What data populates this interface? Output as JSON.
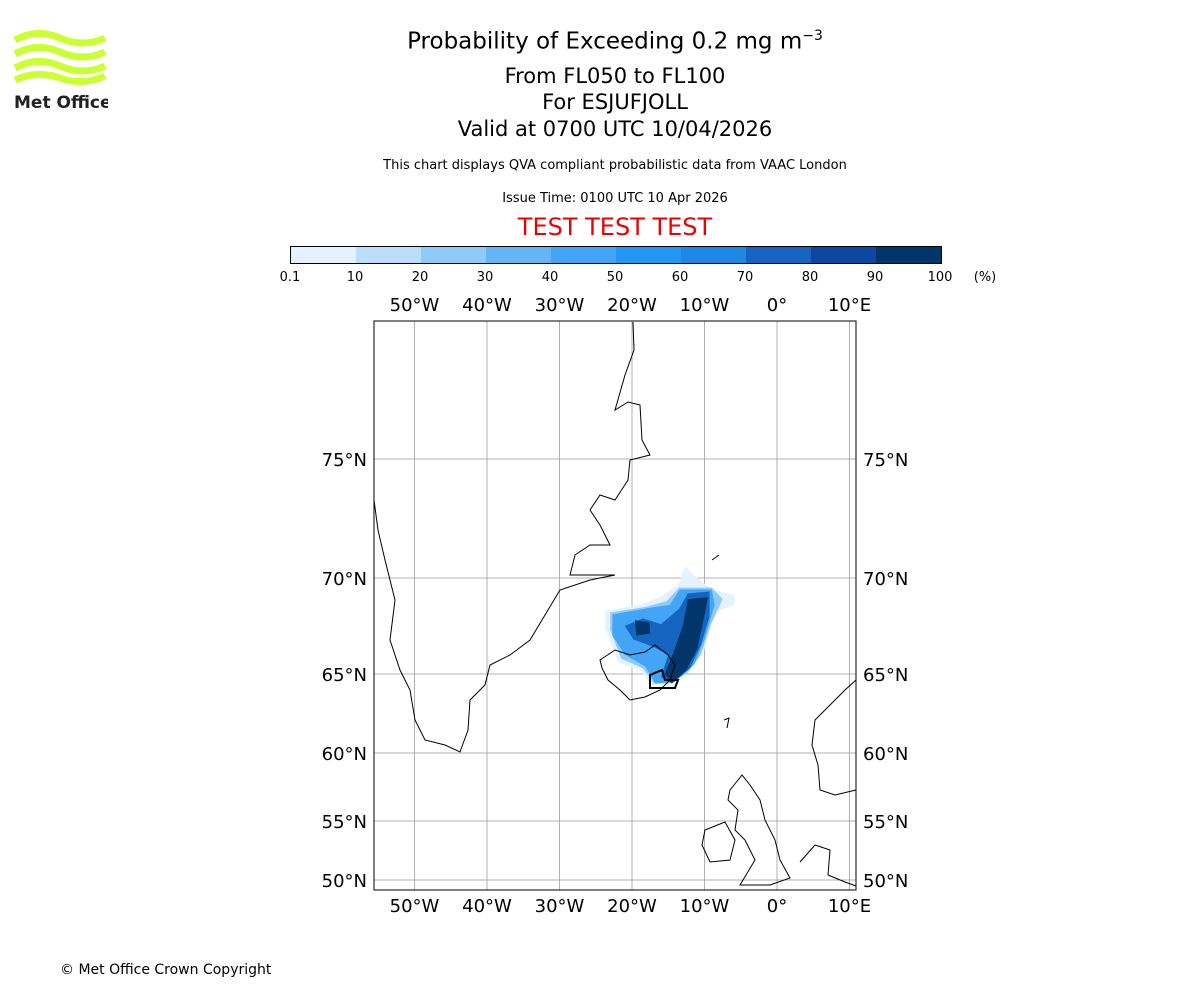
{
  "header": {
    "title": "Probability of Exceeding 0.2 mg m",
    "title_exponent": "−3",
    "flight_levels": "From FL050 to FL100",
    "volcano": "For ESJUFJOLL",
    "valid": "Valid at 0700 UTC 10/04/2026",
    "description": "This chart displays QVA compliant probabilistic data from VAAC London",
    "issue_time": "Issue Time: 0100 UTC 10 Apr 2026",
    "test_banner": "TEST TEST TEST",
    "test_color": "#ee0000"
  },
  "logo": {
    "text": "Met Office",
    "color": "#ccff33"
  },
  "footer": {
    "copyright": "© Met Office Crown Copyright"
  },
  "chart_data": {
    "type": "heatmap",
    "title": "Probability of Exceeding 0.2 mg m-3",
    "colorbar": {
      "ticks": [
        "0.1",
        "10",
        "20",
        "30",
        "40",
        "50",
        "60",
        "70",
        "80",
        "90",
        "100"
      ],
      "unit": "(%)",
      "colors": [
        "#e3f2fd",
        "#bbdefb",
        "#90caf9",
        "#64b5f6",
        "#42a5f5",
        "#2196f3",
        "#1e88e5",
        "#1565c0",
        "#0d47a1",
        "#02366b"
      ]
    },
    "lon_ticks": [
      {
        "v": -50,
        "label": "50°W"
      },
      {
        "v": -40,
        "label": "40°W"
      },
      {
        "v": -30,
        "label": "30°W"
      },
      {
        "v": -20,
        "label": "20°W"
      },
      {
        "v": -10,
        "label": "10°W"
      },
      {
        "v": 0,
        "label": "0°"
      },
      {
        "v": 10,
        "label": "10°E"
      }
    ],
    "lat_ticks": [
      {
        "v": 75,
        "label": "75°N"
      },
      {
        "v": 70,
        "label": "70°N"
      },
      {
        "v": 65,
        "label": "65°N"
      },
      {
        "v": 60,
        "label": "60°N"
      },
      {
        "v": 55,
        "label": "55°N"
      },
      {
        "v": 50,
        "label": "50°N"
      }
    ],
    "plume_regions": [
      {
        "prob": 5,
        "lonlat": [
          [
            -23.7,
            68.3
          ],
          [
            -18.9,
            68.6
          ],
          [
            -16.2,
            69.0
          ],
          [
            -13.7,
            69.6
          ],
          [
            -12.7,
            70.5
          ],
          [
            -11.4,
            70.1
          ],
          [
            -9.0,
            69.4
          ],
          [
            -5.9,
            69.1
          ],
          [
            -5.9,
            68.6
          ],
          [
            -8.6,
            68.2
          ],
          [
            -10.0,
            66.25
          ],
          [
            -12.1,
            65.1
          ],
          [
            -14.8,
            64.4
          ],
          [
            -17.3,
            64.3
          ],
          [
            -18.9,
            65.2
          ],
          [
            -21.9,
            65.6
          ],
          [
            -23.7,
            67.4
          ]
        ]
      },
      {
        "prob": 25,
        "lonlat": [
          [
            -23.0,
            68.2
          ],
          [
            -18.0,
            68.5
          ],
          [
            -15.2,
            68.8
          ],
          [
            -13.5,
            69.5
          ],
          [
            -9.0,
            69.5
          ],
          [
            -7.5,
            68.9
          ],
          [
            -9.2,
            67.5
          ],
          [
            -10.5,
            66.0
          ],
          [
            -12.5,
            65.0
          ],
          [
            -15.0,
            64.4
          ],
          [
            -17.0,
            64.4
          ],
          [
            -18.5,
            65.3
          ],
          [
            -21.5,
            65.8
          ],
          [
            -23.0,
            67.3
          ]
        ]
      },
      {
        "prob": 45,
        "lonlat": [
          [
            -22.7,
            68.1
          ],
          [
            -17.5,
            68.45
          ],
          [
            -14.8,
            68.6
          ],
          [
            -13.4,
            69.4
          ],
          [
            -9.0,
            69.4
          ],
          [
            -8.6,
            68.6
          ],
          [
            -10,
            66.8
          ],
          [
            -11.4,
            65.5
          ],
          [
            -14.1,
            64.5
          ],
          [
            -16.8,
            64.4
          ],
          [
            -18.2,
            65.4
          ],
          [
            -21,
            66.0
          ],
          [
            -22.7,
            67.0
          ]
        ]
      },
      {
        "prob": 75,
        "lonlat": [
          [
            -18.5,
            67.9
          ],
          [
            -16,
            67.6
          ],
          [
            -13.5,
            68.4
          ],
          [
            -12.3,
            69.2
          ],
          [
            -9.3,
            69.3
          ],
          [
            -9.3,
            68.0
          ],
          [
            -10.5,
            66.5
          ],
          [
            -12,
            65.3
          ],
          [
            -14.5,
            64.4
          ],
          [
            -16,
            64.8
          ],
          [
            -15,
            66
          ],
          [
            -17,
            66.4
          ],
          [
            -19.8,
            66.8
          ],
          [
            -21,
            67.5
          ]
        ]
      },
      {
        "prob": 95,
        "lonlat": [
          [
            -12.3,
            68.9
          ],
          [
            -9.5,
            69.0
          ],
          [
            -10.3,
            67.5
          ],
          [
            -11,
            66.3
          ],
          [
            -12.5,
            65.2
          ],
          [
            -14.5,
            64.4
          ],
          [
            -15.5,
            65.0
          ],
          [
            -14.2,
            66.2
          ],
          [
            -13,
            67.5
          ]
        ]
      },
      {
        "prob": 95,
        "lonlat": [
          [
            -19.6,
            67.8
          ],
          [
            -17.6,
            67.7
          ],
          [
            -17.5,
            67.1
          ],
          [
            -19.4,
            67.0
          ]
        ]
      }
    ]
  }
}
